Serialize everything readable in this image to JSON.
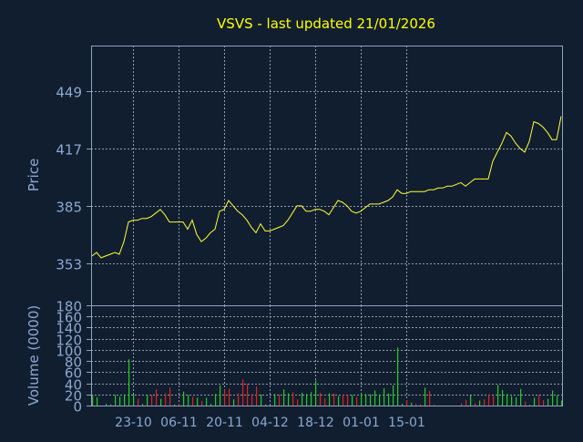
{
  "colors": {
    "background": "#111e30",
    "axis": "#8fa3bf",
    "tick_label": "#8aa9d0",
    "title": "#ffff00",
    "price_line": "#ffff33",
    "up_volume": "#22cc22",
    "down_volume": "#dd2222",
    "grid": "#c8d2e0"
  },
  "chart_data": [
    {
      "type": "line",
      "title": "VSVS - last updated 21/01/2026",
      "ylabel": "Price",
      "ylim": [
        329.5,
        474.5
      ],
      "yticks": [
        353,
        385,
        417,
        449
      ],
      "xtick_labels": [
        "23-10",
        "06-11",
        "20-11",
        "04-12",
        "18-12",
        "01-01",
        "15-01"
      ],
      "xtick_index": [
        9,
        19,
        29,
        39,
        49,
        59,
        69
      ],
      "grid": true,
      "series": [
        {
          "values": [
            357,
            359,
            356,
            357,
            358,
            359,
            358,
            365,
            376,
            377,
            377,
            378,
            378,
            379,
            381,
            383,
            380,
            376,
            376,
            376,
            376,
            372,
            377,
            369,
            365,
            367,
            370,
            372,
            382,
            383,
            388,
            385,
            382,
            380,
            377,
            373,
            370,
            375,
            371,
            371,
            372,
            373,
            374,
            377,
            381,
            385,
            385,
            382,
            382,
            383,
            383,
            382,
            380,
            384,
            388,
            387,
            385,
            382,
            381,
            382,
            384,
            386,
            386,
            386,
            387,
            388,
            390,
            394,
            392,
            392,
            393,
            393,
            393,
            393,
            394,
            394,
            395,
            395,
            396,
            396,
            397,
            398,
            396,
            398,
            400,
            400,
            400,
            400,
            410,
            415,
            420,
            426,
            424,
            420,
            417,
            415,
            421,
            432,
            431,
            429,
            426,
            422,
            422,
            435
          ]
        }
      ]
    },
    {
      "type": "bar",
      "ylabel": "Volume (0000)",
      "ylim": [
        0,
        180
      ],
      "yticks": [
        0,
        20,
        40,
        60,
        80,
        100,
        120,
        140,
        160,
        180
      ],
      "xtick_labels": [
        "23-10",
        "06-11",
        "20-11",
        "04-12",
        "18-12",
        "01-01",
        "15-01"
      ],
      "grid": true,
      "series": [
        {
          "values": [
            20,
            15,
            0,
            3,
            2,
            19,
            16,
            20,
            83,
            20,
            12,
            3,
            20,
            19,
            29,
            12,
            22,
            32,
            2,
            3,
            25,
            19,
            16,
            14,
            8,
            14,
            3,
            21,
            36,
            29,
            30,
            11,
            22,
            47,
            39,
            21,
            34,
            20,
            2,
            0,
            21,
            20,
            29,
            22,
            24,
            11,
            23,
            21,
            24,
            45,
            23,
            13,
            22,
            22,
            17,
            20,
            19,
            19,
            15,
            21,
            21,
            20,
            27,
            20,
            31,
            22,
            36,
            104,
            3,
            10,
            5,
            3,
            2,
            32,
            26,
            1,
            0,
            0,
            0,
            0,
            0,
            4,
            10,
            18,
            4,
            9,
            11,
            20,
            17,
            37,
            28,
            21,
            17,
            15,
            30,
            7,
            1,
            14,
            19,
            10,
            12,
            27,
            18,
            9
          ],
          "direction": [
            "up",
            "up",
            "up",
            "up",
            "up",
            "up",
            "up",
            "up",
            "up",
            "up",
            "down",
            "up",
            "up",
            "down",
            "down",
            "up",
            "down",
            "down",
            "up",
            "down",
            "up",
            "up",
            "down",
            "up",
            "down",
            "up",
            "up",
            "up",
            "up",
            "down",
            "down",
            "up",
            "down",
            "down",
            "down",
            "down",
            "down",
            "up",
            "up",
            "down",
            "up",
            "down",
            "up",
            "up",
            "down",
            "down",
            "up",
            "up",
            "up",
            "up",
            "down",
            "down",
            "up",
            "down",
            "up",
            "down",
            "down",
            "up",
            "down",
            "up",
            "up",
            "up",
            "up",
            "up",
            "up",
            "up",
            "up",
            "up",
            "up",
            "down",
            "up",
            "down",
            "down",
            "up",
            "down",
            "down",
            "up",
            "up",
            "up",
            "up",
            "up",
            "down",
            "down",
            "up",
            "down",
            "up",
            "down",
            "down",
            "down",
            "up",
            "up",
            "up",
            "up",
            "up",
            "up",
            "down",
            "up",
            "up",
            "down",
            "down",
            "up",
            "up",
            "up",
            "up"
          ]
        }
      ]
    }
  ]
}
